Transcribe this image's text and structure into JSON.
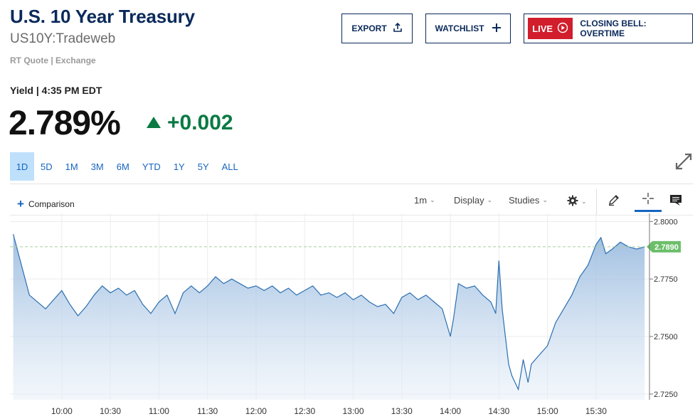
{
  "header": {
    "title": "U.S. 10 Year Treasury",
    "symbol": "US10Y:Tradeweb",
    "quote_source": "RT Quote | Exchange"
  },
  "buttons": {
    "export": "EXPORT",
    "watchlist": "WATCHLIST",
    "live": "LIVE",
    "live_show": "CLOSING BELL: OVERTIME"
  },
  "quote": {
    "yield_label": "Yield | 4:35 PM EDT",
    "value": "2.789%",
    "change": "+0.002"
  },
  "ranges": [
    "1D",
    "5D",
    "1M",
    "3M",
    "6M",
    "YTD",
    "1Y",
    "5Y",
    "ALL"
  ],
  "active_range": "1D",
  "toolbar": {
    "comparison": "Comparison",
    "interval": "1m",
    "display": "Display",
    "studies": "Studies"
  },
  "colors": {
    "brand": "#0b2a5b",
    "up": "#0a7a43",
    "line": "#2b6fb0",
    "last_price": "#6cbf6a",
    "live": "#d11d2c"
  },
  "chart_data": {
    "type": "area",
    "x_ticks": [
      "10:00",
      "10:30",
      "11:00",
      "11:30",
      "12:00",
      "12:30",
      "13:00",
      "13:30",
      "14:00",
      "14:30",
      "15:00",
      "15:30"
    ],
    "y_ticks": [
      "2.8000",
      "2.7750",
      "2.7500",
      "2.7250"
    ],
    "ylim": [
      2.7225,
      2.8035
    ],
    "last_value_label": "2.7890",
    "last_value": 2.789,
    "x": [
      "09:30",
      "09:40",
      "09:50",
      "10:00",
      "10:05",
      "10:10",
      "10:15",
      "10:20",
      "10:25",
      "10:30",
      "10:35",
      "10:40",
      "10:45",
      "10:50",
      "10:55",
      "11:00",
      "11:05",
      "11:10",
      "11:15",
      "11:20",
      "11:25",
      "11:30",
      "11:35",
      "11:40",
      "11:45",
      "11:50",
      "11:55",
      "12:00",
      "12:05",
      "12:10",
      "12:15",
      "12:20",
      "12:25",
      "12:30",
      "12:35",
      "12:40",
      "12:45",
      "12:50",
      "12:55",
      "13:00",
      "13:05",
      "13:10",
      "13:15",
      "13:20",
      "13:25",
      "13:30",
      "13:35",
      "13:40",
      "13:45",
      "13:50",
      "13:55",
      "14:00",
      "14:02",
      "14:05",
      "14:10",
      "14:15",
      "14:20",
      "14:25",
      "14:28",
      "14:30",
      "14:32",
      "14:34",
      "14:36",
      "14:38",
      "14:42",
      "14:45",
      "14:48",
      "14:50",
      "14:55",
      "15:00",
      "15:05",
      "15:10",
      "15:15",
      "15:20",
      "15:25",
      "15:30",
      "15:33",
      "15:36",
      "15:40",
      "15:45",
      "15:50",
      "15:55",
      "16:00"
    ],
    "values": [
      2.7945,
      2.768,
      2.762,
      2.77,
      2.764,
      2.759,
      2.763,
      2.768,
      2.772,
      2.769,
      2.771,
      2.768,
      2.77,
      2.764,
      2.76,
      2.765,
      2.768,
      2.76,
      2.769,
      2.772,
      2.769,
      2.772,
      2.776,
      2.773,
      2.775,
      2.773,
      2.771,
      2.772,
      2.77,
      2.772,
      2.769,
      2.771,
      2.768,
      2.77,
      2.772,
      2.768,
      2.769,
      2.767,
      2.769,
      2.766,
      2.768,
      2.765,
      2.763,
      2.764,
      2.76,
      2.767,
      2.769,
      2.766,
      2.768,
      2.765,
      2.762,
      2.75,
      2.758,
      2.773,
      2.771,
      2.772,
      2.768,
      2.765,
      2.76,
      2.783,
      2.762,
      2.75,
      2.738,
      2.733,
      2.727,
      2.74,
      2.73,
      2.738,
      2.742,
      2.746,
      2.756,
      2.762,
      2.768,
      2.776,
      2.781,
      2.79,
      2.793,
      2.786,
      2.788,
      2.791,
      2.789,
      2.788,
      2.789
    ]
  }
}
